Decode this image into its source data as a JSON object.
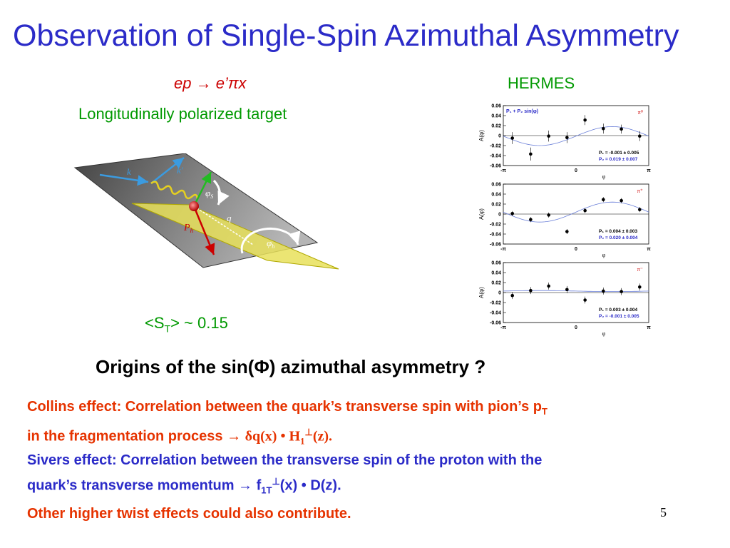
{
  "title": "Observation of Single-Spin Azimuthal Asymmetry",
  "reaction": "ep → e’πx",
  "experiment": "HERMES",
  "target": "Longitudinally polarized target",
  "spin_avg": {
    "prefix": "<S",
    "sub": "T",
    "suffix": "> ~ 0.15"
  },
  "diagram": {
    "k": "k",
    "k_prime": "k'",
    "q": "q",
    "Ph": "P",
    "Ph_sub": "h",
    "phi_s": "φ",
    "phi_s_sub": "S",
    "phi_h": "φ",
    "phi_h_sub": "h"
  },
  "question": "Origins of the sin(Φ) azimuthal asymmetry ?",
  "collins": {
    "text1": "Collins effect: Correlation between the quark’s transverse spin with pion’s p",
    "sub1": "T",
    "text2": "in the fragmentation process ",
    "arrow": "→",
    "formula1": "δq(x) • H",
    "formula_sub": "1",
    "formula_sup": "⊥",
    "formula2": "(z)."
  },
  "sivers": {
    "text1": "Sivers effect: Correlation between the transverse spin of the proton with the",
    "text2": "quark’s transverse momentum ",
    "arrow": "→",
    "f": " f",
    "f_sub": "1T",
    "f_sup": "⊥",
    "rest": "(x) • D(z)."
  },
  "other": "Other higher twist effects could also contribute.",
  "page_number": "5",
  "chart_data": [
    {
      "type": "scatter",
      "title": "",
      "series_label": "P₁ + P₂ sin(φ)",
      "particle": "π⁰",
      "xlabel": "φ",
      "ylabel": "A(φ)",
      "x_ticks": [
        "-π",
        "0",
        "π"
      ],
      "y_ticks": [
        "0.06",
        "0.04",
        "0.02",
        "0",
        "-0.02",
        "-0.04",
        "-0.06"
      ],
      "ylim": [
        -0.06,
        0.06
      ],
      "x": [
        -2.75,
        -1.96,
        -1.18,
        -0.39,
        0.39,
        1.18,
        1.96,
        2.75
      ],
      "y": [
        -0.005,
        -0.037,
        -0.001,
        -0.004,
        0.031,
        0.014,
        0.013,
        -0.001
      ],
      "err": [
        0.012,
        0.013,
        0.011,
        0.011,
        0.01,
        0.01,
        0.009,
        0.01
      ],
      "fit": {
        "P1": -0.001,
        "P2": 0.019
      },
      "params": [
        "P₁ = -0.001 ± 0.005",
        "P₂ = 0.019 ± 0.007"
      ]
    },
    {
      "type": "scatter",
      "title": "",
      "particle": "π⁺",
      "xlabel": "φ",
      "ylabel": "A(φ)",
      "x_ticks": [
        "-π",
        "0",
        "π"
      ],
      "y_ticks": [
        "0.06",
        "0.04",
        "0.02",
        "0",
        "-0.02",
        "-0.04",
        "-0.06"
      ],
      "ylim": [
        -0.06,
        0.06
      ],
      "x": [
        -2.75,
        -1.96,
        -1.18,
        -0.39,
        0.39,
        1.18,
        1.96,
        2.75
      ],
      "y": [
        0.001,
        -0.011,
        -0.002,
        -0.035,
        0.007,
        0.029,
        0.027,
        0.009
      ],
      "err": [
        0.005,
        0.005,
        0.005,
        0.005,
        0.005,
        0.005,
        0.005,
        0.005
      ],
      "fit": {
        "P1": 0.004,
        "P2": 0.02
      },
      "params": [
        "P₁ = 0.004 ± 0.003",
        "P₂ = 0.020 ± 0.004"
      ]
    },
    {
      "type": "scatter",
      "title": "",
      "particle": "π⁻",
      "xlabel": "φ",
      "ylabel": "A(φ)",
      "x_ticks": [
        "-π",
        "0",
        "π"
      ],
      "y_ticks": [
        "0.06",
        "0.04",
        "0.02",
        "0",
        "-0.02",
        "-0.04",
        "-0.06"
      ],
      "ylim": [
        -0.06,
        0.06
      ],
      "x": [
        -2.75,
        -1.96,
        -1.18,
        -0.39,
        0.39,
        1.18,
        1.96,
        2.75
      ],
      "y": [
        -0.006,
        0.004,
        0.013,
        0.006,
        -0.015,
        0.003,
        0.002,
        0.011
      ],
      "err": [
        0.007,
        0.007,
        0.007,
        0.007,
        0.007,
        0.007,
        0.007,
        0.007
      ],
      "fit": {
        "P1": 0.003,
        "P2": -0.001
      },
      "params": [
        "P₁ = 0.003 ± 0.004",
        "P₂ = -0.001 ± 0.005"
      ]
    }
  ]
}
